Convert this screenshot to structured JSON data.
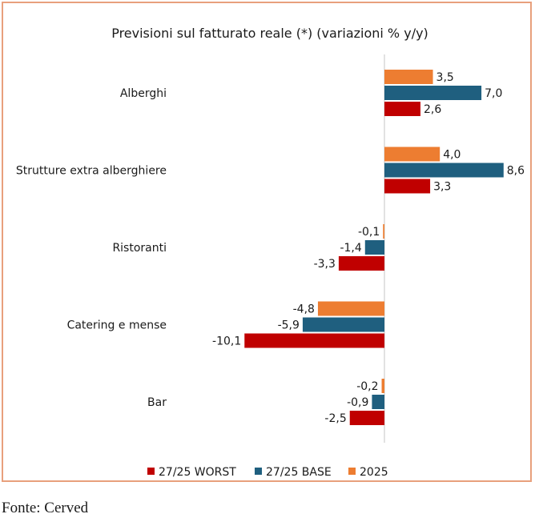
{
  "chart_data": {
    "type": "bar",
    "orientation": "horizontal",
    "title": "Previsioni sul fatturato reale (*) (variazioni % y/y)",
    "categories": [
      "Alberghi",
      "Strutture extra alberghiere",
      "Ristoranti",
      "Catering e mense",
      "Bar"
    ],
    "series": [
      {
        "name": "2025",
        "color": "#ed7d31",
        "values": [
          3.5,
          4.0,
          -0.1,
          -4.8,
          -0.2
        ],
        "labels": [
          "3,5",
          "4,0",
          "-0,1",
          "-4,8",
          "-0,2"
        ]
      },
      {
        "name": "27/25 BASE",
        "color": "#1f5f7f",
        "values": [
          7.0,
          8.6,
          -1.4,
          -5.9,
          -0.9
        ],
        "labels": [
          "7,0",
          "8,6",
          "-1,4",
          "-5,9",
          "-0,9"
        ]
      },
      {
        "name": "27/25 WORST",
        "color": "#c00000",
        "values": [
          2.6,
          3.3,
          -3.3,
          -10.1,
          -2.5
        ],
        "labels": [
          "2,6",
          "3,3",
          "-3,3",
          "-10,1",
          "-2,5"
        ]
      }
    ],
    "legend_order": [
      "27/25 WORST",
      "27/25 BASE",
      "2025"
    ],
    "legend_position": "bottom",
    "grid": false
  },
  "source": "Fonte: Cerved"
}
